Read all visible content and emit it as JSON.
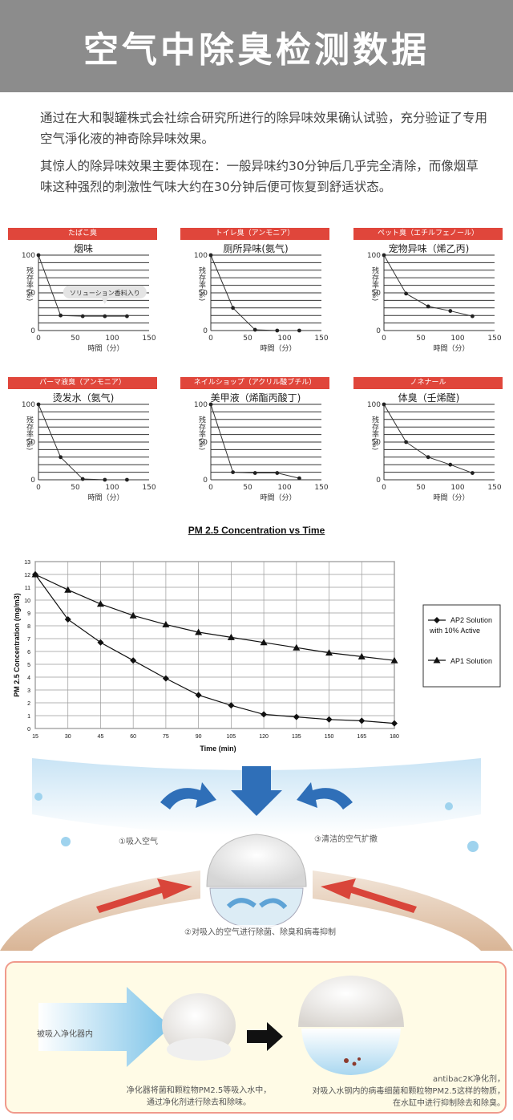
{
  "header": {
    "title": "空气中除臭检测数据"
  },
  "intro": {
    "p1": "通过在大和製罐株式会社综合研究所进行的除异味效果确认试验，充分验证了专用空气淨化液的神奇除异味效果。",
    "p2": "其惊人的除异味效果主要体现在：一般异味约30分钟后几乎完全清除，而像烟草味这种强烈的刺激性气味大约在30分钟后便可恢复到舒适状态。"
  },
  "mini_charts_common": {
    "ylabel": "残存率(%)",
    "xlabel": "時間（分）",
    "y_ticks": [
      "100",
      "50",
      "0"
    ],
    "x_ticks": [
      "0",
      "50",
      "100",
      "150"
    ]
  },
  "chart_data": [
    {
      "type": "line",
      "band": "たばこ臭",
      "title": "烟味",
      "annotation": "ソリューション香料入り",
      "x": [
        0,
        30,
        60,
        90,
        120
      ],
      "y": [
        100,
        20,
        19,
        19,
        19
      ],
      "xlim": [
        0,
        150
      ],
      "ylim": [
        0,
        100
      ]
    },
    {
      "type": "line",
      "band": "トイレ臭（アンモニア）",
      "title": "厕所异味(氨气)",
      "x": [
        0,
        30,
        60,
        90,
        120
      ],
      "y": [
        100,
        30,
        1,
        0,
        0
      ],
      "xlim": [
        0,
        150
      ],
      "ylim": [
        0,
        100
      ]
    },
    {
      "type": "line",
      "band": "ペット臭（エチルフェノール）",
      "title": "宠物异味（烯乙丙)",
      "x": [
        0,
        30,
        60,
        90,
        120
      ],
      "y": [
        100,
        49,
        32,
        26,
        19
      ],
      "xlim": [
        0,
        150
      ],
      "ylim": [
        0,
        100
      ]
    },
    {
      "type": "line",
      "band": "パーマ液臭（アンモニア）",
      "title": "烫发水（氨气)",
      "x": [
        0,
        30,
        60,
        90,
        120
      ],
      "y": [
        100,
        30,
        1,
        0,
        0
      ],
      "xlim": [
        0,
        150
      ],
      "ylim": [
        0,
        100
      ]
    },
    {
      "type": "line",
      "band": "ネイルショップ（アクリル酸ブチル）",
      "title": "美甲液（烯酯丙酸丁)",
      "x": [
        0,
        30,
        60,
        90,
        120
      ],
      "y": [
        100,
        10,
        9,
        9,
        2
      ],
      "xlim": [
        0,
        150
      ],
      "ylim": [
        0,
        100
      ]
    },
    {
      "type": "line",
      "band": "ノネナール",
      "title": "体臭（壬烯醛)",
      "x": [
        0,
        30,
        60,
        90,
        120
      ],
      "y": [
        100,
        50,
        30,
        20,
        9
      ],
      "xlim": [
        0,
        150
      ],
      "ylim": [
        0,
        100
      ]
    },
    {
      "type": "line",
      "title": "PM 2.5 Concentration vs Time",
      "xlabel": "Time (min)",
      "ylabel": "PM 2.5 Concentration (mg/m3)",
      "x": [
        15,
        30,
        45,
        60,
        75,
        90,
        105,
        120,
        135,
        150,
        165,
        180
      ],
      "ylim": [
        0,
        13
      ],
      "y_ticks": [
        0,
        1,
        2,
        3,
        4,
        5,
        6,
        7,
        8,
        9,
        10,
        11,
        12,
        13
      ],
      "grid": true,
      "legend": "right",
      "series": [
        {
          "name": "AP2 Solution with 10% Active",
          "marker": "diamond",
          "values": [
            12.0,
            8.5,
            6.7,
            5.3,
            3.9,
            2.6,
            1.8,
            1.1,
            0.9,
            0.7,
            0.6,
            0.4
          ]
        },
        {
          "name": "AP1 Solution",
          "marker": "triangle",
          "values": [
            12.0,
            10.8,
            9.7,
            8.8,
            8.1,
            7.5,
            7.1,
            6.7,
            6.3,
            5.9,
            5.6,
            5.3
          ]
        }
      ]
    }
  ],
  "pm_legend": {
    "ap2_line1": "AP2 Solution",
    "ap2_line2": "with 10% Active",
    "ap1": "AP1 Solution"
  },
  "diagram": {
    "step1": "①吸入空气",
    "step2": "②对吸入的空气进行除菌、除臭和病毒抑制",
    "step3": "③清洁的空气扩撒"
  },
  "flow": {
    "label_in": "被吸入净化器内",
    "caption_left_1": "净化器将菌和颗粒物PM2.5等吸入水中，",
    "caption_left_2": "通过净化剂进行除去和除味。",
    "caption_right_1": "antibac2K净化剂，",
    "caption_right_2": "对吸入水钢内的病毒细菌和颗粒物PM2.5这样的物质，",
    "caption_right_3": "在水缸中进行抑制除去和除臭。"
  },
  "colors": {
    "header": "#8c8c8c",
    "band": "#e0463b",
    "arrow_blue": "#2f6fb8",
    "arrow_red": "#d9453a",
    "box_border": "#f09a8c",
    "box_bg": "#fffbe6"
  }
}
